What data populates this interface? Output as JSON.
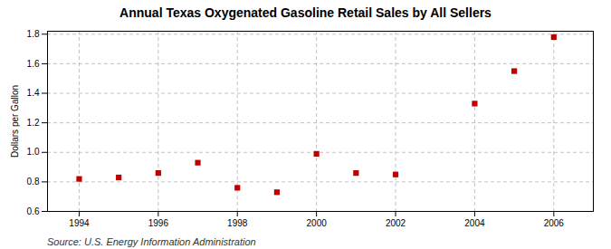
{
  "chart_data": {
    "type": "scatter",
    "title": "Annual Texas Oxygenated Gasoline Retail Sales by All Sellers",
    "ylabel": "Dollars per Gallon",
    "source": "Source: U.S. Energy Information Administration",
    "x": [
      1994,
      1995,
      1996,
      1997,
      1998,
      1999,
      2000,
      2001,
      2002,
      2004,
      2005,
      2006
    ],
    "values": [
      0.82,
      0.83,
      0.86,
      0.93,
      0.76,
      0.73,
      0.99,
      0.86,
      0.85,
      1.33,
      1.55,
      1.78
    ],
    "color": "#c00000",
    "marker": "square",
    "xlim": [
      1993.2,
      2007.0
    ],
    "ylim": [
      0.6,
      1.82
    ],
    "xticks": [
      1994,
      1996,
      1998,
      2000,
      2002,
      2004,
      2006
    ],
    "yticks": [
      0.6,
      0.8,
      {
        "value": 1,
        "label": "1.0"
      },
      1.2,
      1.4,
      1.6,
      1.8
    ],
    "grid": true
  }
}
